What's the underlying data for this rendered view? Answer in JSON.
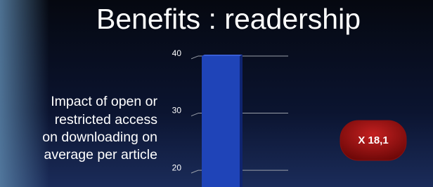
{
  "chart_data": {
    "type": "bar",
    "title": "Benefits : readership",
    "description_lines": [
      "Impact of open or",
      "restricted access",
      "on downloading on",
      "average per article"
    ],
    "annotation": "X 18,1",
    "categories": [
      null
    ],
    "values": [
      40
    ],
    "color": "#1f44b8",
    "ylim": [
      17,
      41
    ],
    "yticks": [
      20,
      30,
      40
    ],
    "grid": true
  }
}
